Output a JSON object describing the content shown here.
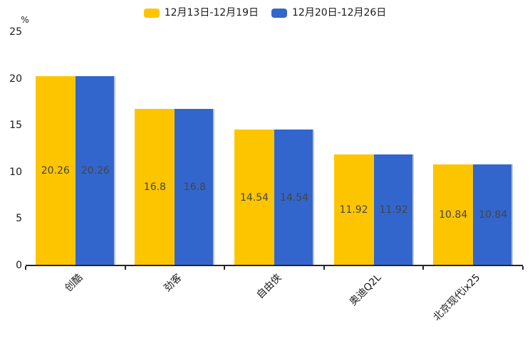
{
  "chart_data": {
    "type": "bar",
    "title": "",
    "categories": [
      "创酷",
      "劲客",
      "自由侠",
      "奥迪Q2L",
      "北京现代ix25"
    ],
    "series": [
      {
        "name": "12月13日-12月19日",
        "color": "#FDC500",
        "values": [
          20.26,
          16.8,
          14.54,
          11.92,
          10.84
        ]
      },
      {
        "name": "12月20日-12月26日",
        "color": "#3366CC",
        "values": [
          20.26,
          16.8,
          14.54,
          11.92,
          10.84
        ]
      }
    ],
    "ylabel": "%",
    "ylim": [
      0,
      25
    ],
    "yticks": [
      0,
      5,
      10,
      15,
      20,
      25
    ],
    "grid": false,
    "legend_position": "top-center",
    "value_labels_shown": true,
    "xlabel": ""
  },
  "colors": {
    "background": "#ffffff",
    "axis": "#262626",
    "tick_text": "#1a1a1a",
    "value_label_text": "#444444",
    "blue_bar_edge": "#b6c5ec"
  }
}
